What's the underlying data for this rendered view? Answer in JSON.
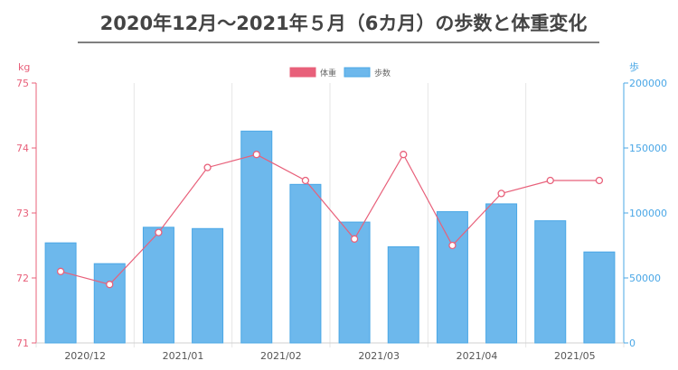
{
  "title": "2020年12月〜2021年５月（6カ月）の歩数と体重変化",
  "colors": {
    "weight": "#e8607a",
    "steps_fill": "#6db8ec",
    "steps_stroke": "#4aa7e6",
    "grid": "#e6e6e6",
    "title": "#444444"
  },
  "chart_data": {
    "type": "bar",
    "title": "2020年12月〜2021年５月（6カ月）の歩数と体重変化",
    "legend_position": "top-center",
    "x_labels": [
      "2020/12",
      "2021/01",
      "2021/02",
      "2021/03",
      "2021/04",
      "2021/05"
    ],
    "y_left": {
      "label": "kg",
      "range": [
        71,
        75
      ],
      "ticks": [
        "71",
        "72",
        "73",
        "74",
        "75"
      ]
    },
    "y_right": {
      "label": "歩",
      "range": [
        0,
        200000
      ],
      "ticks": [
        "0",
        "50000",
        "100000",
        "150000",
        "200000"
      ]
    },
    "series": [
      {
        "name": "体重",
        "type": "line",
        "axis": "left",
        "values": [
          72.1,
          71.9,
          72.7,
          73.7,
          73.9,
          73.5,
          72.6,
          73.9,
          72.5,
          73.3,
          73.5,
          73.5
        ]
      },
      {
        "name": "歩数",
        "type": "bar",
        "axis": "right",
        "values": [
          77000,
          61000,
          89000,
          88000,
          163000,
          122000,
          93000,
          74000,
          101000,
          107000,
          94000,
          70000
        ]
      }
    ]
  }
}
